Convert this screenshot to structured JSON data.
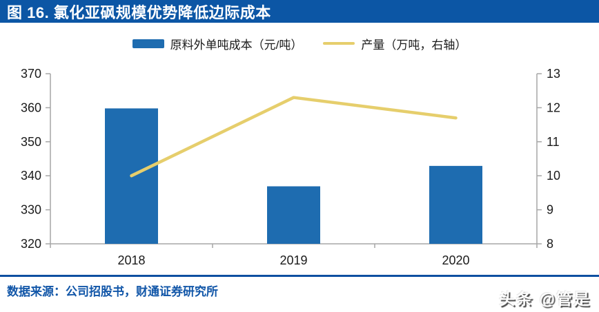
{
  "title": "图 16. 氯化亚砜规模优势降低边际成本",
  "source": "数据来源：公司招股书，财通证券研究所",
  "watermark": "头条 @管是",
  "colors": {
    "header_blue": "#0C56A5",
    "bar_blue": "#1E6CB0",
    "line_yellow": "#E6CE6C",
    "divider_blue": "#0D4FA0",
    "source_text_blue": "#1156A8",
    "axis_gray": "#A6A6A6",
    "tick_text": "#1a1a1a"
  },
  "chart_data": {
    "type": "bar",
    "title": "图 16. 氯化亚砜规模优势降低边际成本",
    "categories": [
      "2018",
      "2019",
      "2020"
    ],
    "series": [
      {
        "name": "原料外单吨成本（元/吨）",
        "type": "bar",
        "axis": "left",
        "color": "#1E6CB0",
        "values": [
          359.8,
          336.9,
          342.9
        ]
      },
      {
        "name": "产量（万吨，右轴）",
        "type": "line",
        "axis": "right",
        "color": "#E6CE6C",
        "values": [
          10.0,
          12.3,
          11.7
        ]
      }
    ],
    "left_axis": {
      "min": 320,
      "max": 370,
      "ticks": [
        370,
        360,
        350,
        340,
        330,
        320
      ]
    },
    "right_axis": {
      "min": 8,
      "max": 13,
      "ticks": [
        13,
        12,
        11,
        10,
        9,
        8
      ]
    },
    "grid": false,
    "legend_position": "top-center",
    "xlabel": "",
    "ylabel_left": "元/吨",
    "ylabel_right": "万吨"
  }
}
